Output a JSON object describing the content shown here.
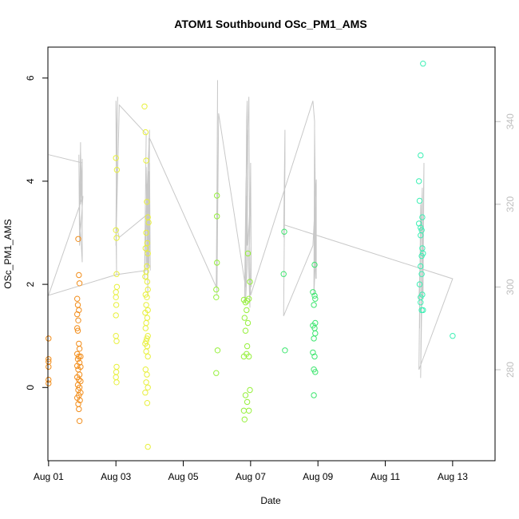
{
  "chart_data": {
    "type": "scatter",
    "title": "ATOM1 Southbound OSc_PM1_AMS",
    "xlabel": "Date",
    "ylabel": "OSc_PM1_AMS",
    "xlim": [
      -0.02,
      13.26
    ],
    "ylim": [
      -1.42,
      6.6
    ],
    "x_ticks": [
      {
        "value": 0,
        "label": "Aug 01"
      },
      {
        "value": 2,
        "label": "Aug 03"
      },
      {
        "value": 4,
        "label": "Aug 05"
      },
      {
        "value": 6,
        "label": "Aug 07"
      },
      {
        "value": 8,
        "label": "Aug 09"
      },
      {
        "value": 10,
        "label": "Aug 11"
      },
      {
        "value": 12,
        "label": "Aug 13"
      }
    ],
    "y_ticks": [
      0,
      2,
      4,
      6
    ],
    "y2_label": "",
    "y2_lim": [
      258,
      358
    ],
    "y2_ticks": [
      280,
      300,
      320,
      340
    ],
    "y2_color": "#bebebe",
    "line_color": "#c8c8c8",
    "point_groups": [
      {
        "color": "#f28e1c",
        "points": [
          [
            0.0,
            0.95
          ],
          [
            0.0,
            0.55
          ],
          [
            0.0,
            0.5
          ],
          [
            0.0,
            0.4
          ],
          [
            0.0,
            0.15
          ],
          [
            0.0,
            0.08
          ],
          [
            0.88,
            2.88
          ],
          [
            0.9,
            2.18
          ],
          [
            0.92,
            2.02
          ],
          [
            0.85,
            1.72
          ],
          [
            0.87,
            1.6
          ],
          [
            0.9,
            1.5
          ],
          [
            0.85,
            1.42
          ],
          [
            0.88,
            1.3
          ],
          [
            0.85,
            1.15
          ],
          [
            0.87,
            1.1
          ],
          [
            0.9,
            0.85
          ],
          [
            0.92,
            0.75
          ],
          [
            0.85,
            0.65
          ],
          [
            0.9,
            0.6
          ],
          [
            0.95,
            0.6
          ],
          [
            0.87,
            0.55
          ],
          [
            0.92,
            0.48
          ],
          [
            0.85,
            0.42
          ],
          [
            0.95,
            0.4
          ],
          [
            0.88,
            0.35
          ],
          [
            0.92,
            0.25
          ],
          [
            0.85,
            0.2
          ],
          [
            0.9,
            0.15
          ],
          [
            0.95,
            0.12
          ],
          [
            0.87,
            0.05
          ],
          [
            0.92,
            0.0
          ],
          [
            0.88,
            -0.05
          ],
          [
            0.95,
            -0.1
          ],
          [
            0.9,
            -0.15
          ],
          [
            0.85,
            -0.2
          ],
          [
            0.93,
            -0.25
          ],
          [
            0.88,
            -0.32
          ],
          [
            0.9,
            -0.42
          ],
          [
            0.92,
            -0.65
          ]
        ]
      },
      {
        "color": "#e8f03c",
        "points": [
          [
            2.0,
            4.45
          ],
          [
            2.03,
            4.22
          ],
          [
            2.0,
            3.05
          ],
          [
            2.02,
            2.9
          ],
          [
            2.02,
            2.2
          ],
          [
            2.03,
            1.95
          ],
          [
            2.0,
            1.85
          ],
          [
            2.0,
            1.75
          ],
          [
            2.01,
            1.6
          ],
          [
            2.0,
            1.4
          ],
          [
            2.0,
            1.0
          ],
          [
            2.02,
            0.9
          ],
          [
            2.02,
            0.4
          ],
          [
            2.01,
            0.3
          ],
          [
            2.0,
            0.2
          ],
          [
            2.02,
            0.1
          ],
          [
            2.85,
            5.45
          ],
          [
            2.88,
            4.95
          ],
          [
            2.9,
            4.4
          ],
          [
            2.92,
            3.6
          ],
          [
            2.95,
            3.3
          ],
          [
            2.97,
            3.2
          ],
          [
            2.9,
            3.0
          ],
          [
            2.93,
            2.8
          ],
          [
            2.88,
            2.7
          ],
          [
            2.95,
            2.6
          ],
          [
            2.92,
            2.35
          ],
          [
            2.9,
            2.25
          ],
          [
            2.87,
            2.15
          ],
          [
            2.93,
            2.05
          ],
          [
            2.95,
            1.9
          ],
          [
            2.88,
            1.8
          ],
          [
            2.92,
            1.75
          ],
          [
            2.9,
            1.6
          ],
          [
            2.95,
            1.5
          ],
          [
            2.87,
            1.45
          ],
          [
            2.93,
            1.35
          ],
          [
            2.9,
            1.25
          ],
          [
            2.88,
            1.15
          ],
          [
            2.95,
            1.0
          ],
          [
            2.92,
            0.95
          ],
          [
            2.9,
            0.9
          ],
          [
            2.87,
            0.85
          ],
          [
            2.93,
            0.8
          ],
          [
            2.9,
            0.7
          ],
          [
            2.95,
            0.6
          ],
          [
            2.88,
            0.35
          ],
          [
            2.92,
            0.25
          ],
          [
            2.9,
            0.1
          ],
          [
            2.95,
            0.0
          ],
          [
            2.87,
            -0.1
          ],
          [
            2.93,
            -0.3
          ],
          [
            2.95,
            -1.15
          ]
        ]
      },
      {
        "color": "#96f03c",
        "points": [
          [
            5.0,
            3.72
          ],
          [
            5.0,
            3.32
          ],
          [
            5.0,
            2.42
          ],
          [
            4.98,
            1.9
          ],
          [
            4.98,
            1.75
          ],
          [
            5.02,
            0.72
          ],
          [
            4.98,
            0.28
          ],
          [
            5.8,
            1.7
          ],
          [
            5.85,
            1.65
          ],
          [
            5.9,
            1.68
          ],
          [
            5.95,
            1.72
          ],
          [
            5.88,
            1.5
          ],
          [
            5.82,
            1.35
          ],
          [
            5.92,
            1.25
          ],
          [
            5.85,
            1.1
          ],
          [
            5.9,
            0.8
          ],
          [
            5.95,
            0.6
          ],
          [
            5.8,
            0.6
          ],
          [
            5.88,
            0.65
          ],
          [
            5.92,
            2.6
          ],
          [
            5.98,
            2.05
          ],
          [
            5.85,
            -0.15
          ],
          [
            5.9,
            -0.28
          ],
          [
            5.8,
            -0.45
          ],
          [
            5.95,
            -0.45
          ],
          [
            5.98,
            -0.05
          ],
          [
            5.82,
            -0.62
          ]
        ]
      },
      {
        "color": "#3ce66e",
        "points": [
          [
            7.0,
            3.02
          ],
          [
            6.98,
            2.2
          ],
          [
            7.02,
            0.72
          ],
          [
            7.85,
            1.85
          ],
          [
            7.9,
            1.78
          ],
          [
            7.92,
            1.72
          ],
          [
            7.88,
            1.6
          ],
          [
            7.85,
            1.2
          ],
          [
            7.9,
            1.15
          ],
          [
            7.92,
            1.05
          ],
          [
            7.88,
            0.95
          ],
          [
            7.85,
            0.68
          ],
          [
            7.9,
            0.6
          ],
          [
            7.88,
            0.35
          ],
          [
            7.92,
            0.3
          ],
          [
            7.9,
            2.38
          ],
          [
            7.88,
            -0.15
          ],
          [
            7.92,
            1.25
          ]
        ]
      },
      {
        "color": "#3cf0b4",
        "points": [
          [
            11.12,
            6.28
          ],
          [
            11.05,
            4.5
          ],
          [
            11.0,
            4.0
          ],
          [
            11.02,
            3.62
          ],
          [
            11.1,
            3.3
          ],
          [
            11.0,
            3.18
          ],
          [
            11.05,
            3.1
          ],
          [
            11.08,
            3.05
          ],
          [
            11.05,
            2.95
          ],
          [
            11.1,
            2.7
          ],
          [
            11.08,
            2.55
          ],
          [
            11.12,
            2.6
          ],
          [
            11.05,
            2.35
          ],
          [
            11.08,
            2.2
          ],
          [
            11.02,
            2.0
          ],
          [
            11.1,
            1.8
          ],
          [
            11.05,
            1.75
          ],
          [
            11.08,
            1.5
          ],
          [
            11.12,
            1.5
          ],
          [
            11.05,
            1.65
          ],
          [
            12.0,
            1.0
          ]
        ]
      }
    ],
    "line_series": [
      [
        [
          0,
          332
        ],
        [
          1,
          330
        ],
        [
          0.95,
          320
        ],
        [
          0.95,
          335
        ],
        [
          0.92,
          318
        ],
        [
          1.0,
          306
        ],
        [
          1.0,
          331
        ],
        [
          1.0,
          318
        ],
        [
          0.95,
          333
        ],
        [
          0.92,
          315
        ],
        [
          0.9,
          332
        ],
        [
          0.92,
          310
        ],
        [
          1.02,
          322
        ],
        [
          0,
          298
        ],
        [
          2.02,
          303
        ],
        [
          2.0,
          345
        ],
        [
          2.02,
          338
        ],
        [
          2.0,
          312
        ],
        [
          2.05,
          346
        ],
        [
          2.0,
          310
        ],
        [
          2.1,
          344
        ],
        [
          2.9,
          337
        ],
        [
          2.85,
          302
        ],
        [
          2.88,
          310
        ],
        [
          2.92,
          325
        ],
        [
          2.95,
          298
        ],
        [
          2.9,
          329
        ],
        [
          2.93,
          305
        ],
        [
          2.97,
          328
        ],
        [
          2.99,
          315
        ],
        [
          3.0,
          330
        ],
        [
          3.02,
          304
        ],
        [
          2.98,
          336
        ],
        [
          3.0,
          324
        ],
        [
          2.95,
          302
        ],
        [
          2.98,
          322
        ],
        [
          2.9,
          318
        ],
        [
          3.0,
          338
        ],
        [
          2.98,
          305
        ],
        [
          3.0,
          318
        ],
        [
          2.1,
          312
        ],
        [
          2.0,
          315
        ],
        [
          2.02,
          303
        ],
        [
          2.9,
          304
        ],
        [
          2.96,
          330
        ],
        [
          3.0,
          336
        ],
        [
          4.98,
          300
        ],
        [
          5.0,
          322
        ],
        [
          5.02,
          350
        ],
        [
          5.0,
          298
        ],
        [
          5.05,
          342
        ],
        [
          5.85,
          300
        ],
        [
          5.88,
          340
        ],
        [
          5.9,
          345
        ],
        [
          5.82,
          297
        ],
        [
          5.86,
          325
        ],
        [
          5.95,
          346
        ],
        [
          5.98,
          295
        ],
        [
          5.88,
          322
        ],
        [
          5.9,
          310
        ],
        [
          5.92,
          338
        ],
        [
          5.85,
          296
        ],
        [
          6.0,
          324
        ],
        [
          6.02,
          300
        ],
        [
          6.0,
          330
        ],
        [
          5.97,
          310
        ],
        [
          6.0,
          298
        ],
        [
          7.85,
          345
        ],
        [
          7.9,
          340
        ],
        [
          7.88,
          298
        ],
        [
          7.92,
          305
        ],
        [
          7.9,
          330
        ],
        [
          7.94,
          302
        ],
        [
          7.92,
          320
        ],
        [
          7.88,
          298
        ],
        [
          7.9,
          338
        ],
        [
          7.95,
          302
        ],
        [
          7.95,
          326
        ],
        [
          7.85,
          310
        ],
        [
          6.98,
          293
        ],
        [
          7.02,
          330
        ],
        [
          7.02,
          338
        ],
        [
          6.98,
          312
        ],
        [
          7.0,
          315
        ],
        [
          12.0,
          302
        ],
        [
          11.0,
          280
        ],
        [
          11.05,
          320
        ],
        [
          11.02,
          290
        ],
        [
          11.05,
          310
        ],
        [
          11.0,
          297
        ],
        [
          11.1,
          324
        ],
        [
          11.05,
          278
        ],
        [
          11.15,
          330
        ],
        [
          11.12,
          297
        ],
        [
          11.08,
          305
        ]
      ]
    ]
  }
}
